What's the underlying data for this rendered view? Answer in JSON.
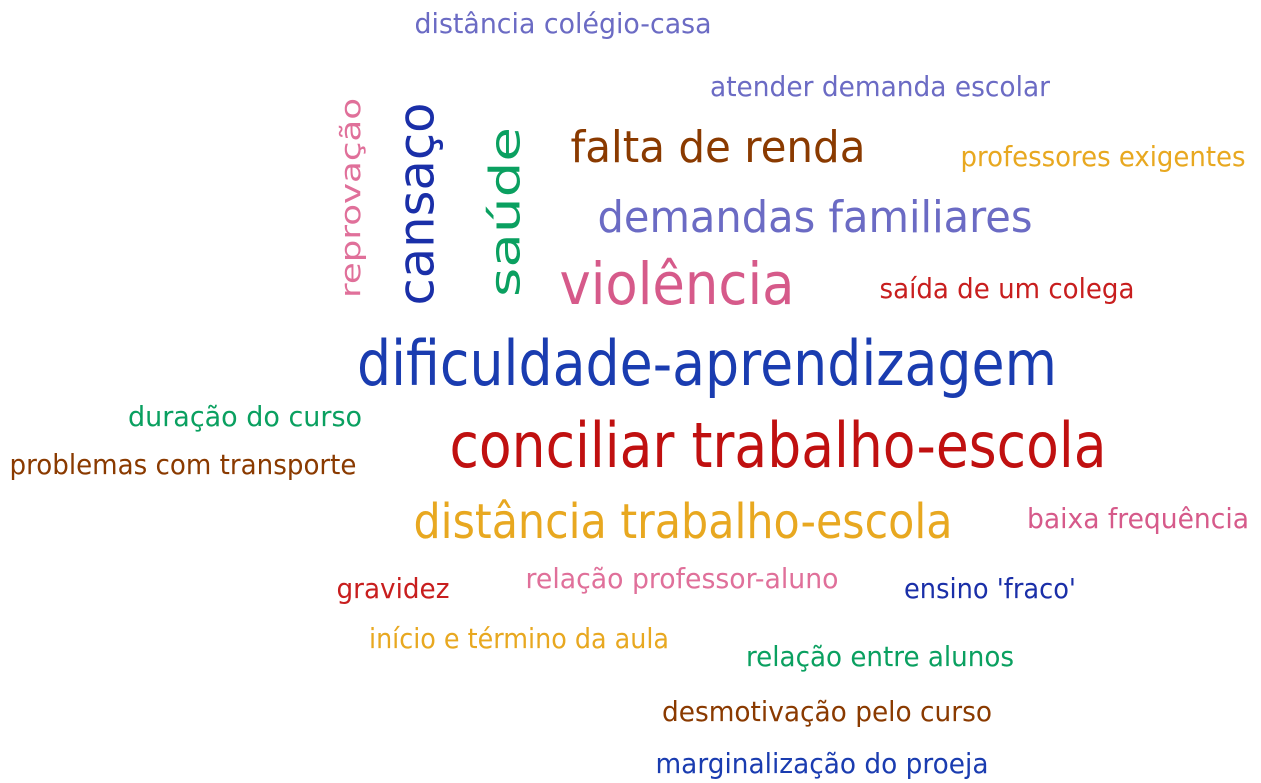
{
  "words": [
    {
      "text": "distância colégio-casa",
      "color": "#6b6bc4"
    },
    {
      "text": "atender demanda escolar",
      "color": "#6b6bc4"
    },
    {
      "text": "reprovação",
      "color": "#e0709a"
    },
    {
      "text": "cansaço",
      "color": "#1a2fa8"
    },
    {
      "text": "saúde",
      "color": "#0aa060"
    },
    {
      "text": "falta de renda",
      "color": "#8a3a00"
    },
    {
      "text": "professores exigentes",
      "color": "#e8a820"
    },
    {
      "text": "demandas familiares",
      "color": "#6b6bc4"
    },
    {
      "text": "violência",
      "color": "#d65a8a"
    },
    {
      "text": "saída de um colega",
      "color": "#c81e1e"
    },
    {
      "text": "dificuldade-aprendizagem",
      "color": "#1a3cb0"
    },
    {
      "text": "duração do curso",
      "color": "#0aa060"
    },
    {
      "text": "conciliar trabalho-escola",
      "color": "#c01010"
    },
    {
      "text": "problemas com transporte",
      "color": "#8a3a00"
    },
    {
      "text": "distância trabalho-escola",
      "color": "#e8a820"
    },
    {
      "text": "baixa frequência",
      "color": "#d65a8a"
    },
    {
      "text": "gravidez",
      "color": "#c81e1e"
    },
    {
      "text": "relação professor-aluno",
      "color": "#e0709a"
    },
    {
      "text": "ensino 'fraco'",
      "color": "#1a2fa8"
    },
    {
      "text": "início e término da aula",
      "color": "#e8a820"
    },
    {
      "text": "relação entre alunos",
      "color": "#0aa060"
    },
    {
      "text": "desmotivação pelo curso",
      "color": "#8a3a00"
    },
    {
      "text": "marginalização do proeja",
      "color": "#1a3cb0"
    }
  ]
}
